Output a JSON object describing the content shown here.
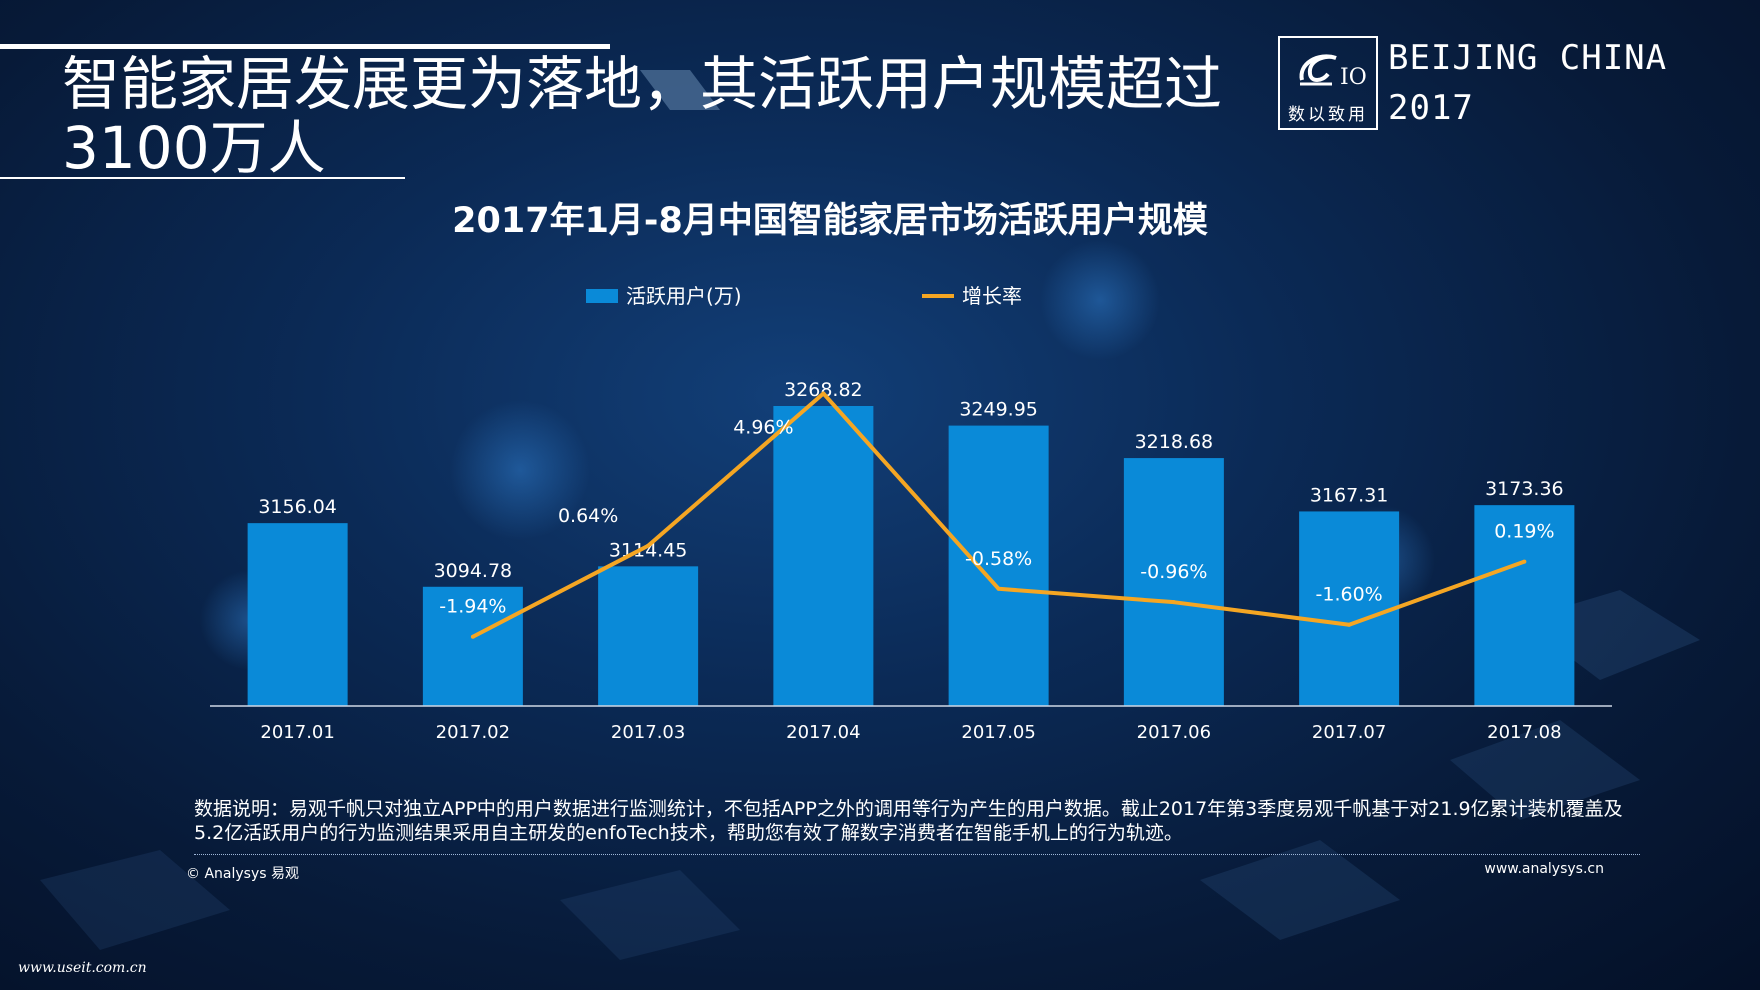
{
  "header": {
    "headline_line1": "智能家居发展更为落地，其活跃用户规模超过",
    "headline_line2": "3100万人",
    "logo_caption": "数以致用",
    "brand_line1": "BEIJING CHINA",
    "brand_line2": "2017"
  },
  "colors": {
    "bar": "#0a8ad8",
    "line": "#f5a623",
    "axis": "#cfd8e6",
    "text": "#ffffff"
  },
  "chart_data": {
    "type": "bar",
    "title": "2017年1月-8月中国智能家居市场活跃用户规模",
    "categories": [
      "2017.01",
      "2017.02",
      "2017.03",
      "2017.04",
      "2017.05",
      "2017.06",
      "2017.07",
      "2017.08"
    ],
    "series": [
      {
        "name": "活跃用户(万)",
        "type": "bar",
        "values": [
          3156.04,
          3094.78,
          3114.45,
          3268.82,
          3249.95,
          3218.68,
          3167.31,
          3173.36
        ],
        "labels": [
          "3156.04",
          "3094.78",
          "3114.45",
          "3268.82",
          "3249.95",
          "3218.68",
          "3167.31",
          "3173.36"
        ]
      },
      {
        "name": "增长率",
        "type": "line",
        "values": [
          null,
          -1.94,
          0.64,
          4.96,
          -0.58,
          -0.96,
          -1.6,
          0.19
        ],
        "labels": [
          "",
          "-1.94%",
          "0.64%",
          "4.96%",
          "-0.58%",
          "-0.96%",
          "-1.60%",
          "0.19%"
        ]
      }
    ],
    "bar_axis_range": [
      2980,
      3290
    ],
    "line_axis_range": [
      -2.6,
      5.2
    ],
    "legend_position": "top-center",
    "grid": false
  },
  "footer": {
    "note": "数据说明：易观千帆只对独立APP中的用户数据进行监测统计，不包括APP之外的调用等行为产生的用户数据。截止2017年第3季度易观千帆基于对21.9亿累计装机覆盖及5.2亿活跃用户的行为监测结果采用自主研发的enfoTech技术，帮助您有效了解数字消费者在智能手机上的行为轨迹。",
    "copyright": "© Analysys 易观",
    "site": "www.analysys.cn",
    "watermark": "www.useit.com.cn"
  }
}
